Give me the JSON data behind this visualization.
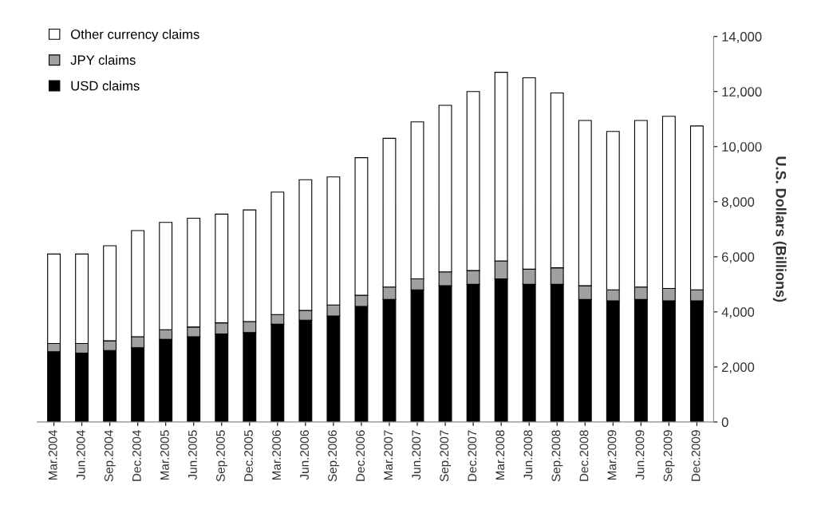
{
  "chart_data": {
    "type": "bar",
    "stacked": true,
    "ylabel": "U.S. Dollars (Billions)",
    "legend": "top left",
    "grid": false,
    "categories": [
      "Mar.2004",
      "Jun.2004",
      "Sep.2004",
      "Dec.2004",
      "Mar.2005",
      "Jun.2005",
      "Sep.2005",
      "Dec.2005",
      "Mar.2006",
      "Jun.2006",
      "Sep.2006",
      "Dec.2006",
      "Mar.2007",
      "Jun.2007",
      "Sep.2007",
      "Dec.2007",
      "Mar.2008",
      "Jun.2008",
      "Sep.2008",
      "Dec.2008",
      "Mar.2009",
      "Jun.2009",
      "Sep.2009",
      "Dec.2009"
    ],
    "series": [
      {
        "name": "USD claims",
        "color": "#000000",
        "values": [
          2550,
          2500,
          2600,
          2700,
          3000,
          3100,
          3200,
          3250,
          3550,
          3700,
          3850,
          4200,
          4450,
          4800,
          4950,
          5000,
          5200,
          5000,
          5000,
          4450,
          4400,
          4450,
          4400,
          4400
        ]
      },
      {
        "name": "JPY claims",
        "color": "#a0a0a0",
        "values": [
          300,
          350,
          350,
          400,
          350,
          350,
          400,
          400,
          350,
          350,
          400,
          400,
          450,
          400,
          500,
          500,
          650,
          550,
          600,
          500,
          400,
          450,
          450,
          400
        ]
      },
      {
        "name": "Other currency claims",
        "color": "#ffffff",
        "values": [
          3250,
          3250,
          3450,
          3850,
          3900,
          3950,
          3950,
          4050,
          4450,
          4750,
          4650,
          5000,
          5400,
          5700,
          6050,
          6500,
          6850,
          6950,
          6350,
          6000,
          5750,
          6050,
          6250,
          5950
        ]
      }
    ],
    "ylim": [
      0,
      14000
    ],
    "yticks": [
      {
        "value": 0,
        "label": "0"
      },
      {
        "value": 2000,
        "label": "2,000"
      },
      {
        "value": 4000,
        "label": "4,000"
      },
      {
        "value": 6000,
        "label": "6,000"
      },
      {
        "value": 8000,
        "label": "8,000"
      },
      {
        "value": 10000,
        "label": "10,000"
      },
      {
        "value": 12000,
        "label": "12,000"
      },
      {
        "value": 14000,
        "label": "14,000"
      }
    ]
  }
}
